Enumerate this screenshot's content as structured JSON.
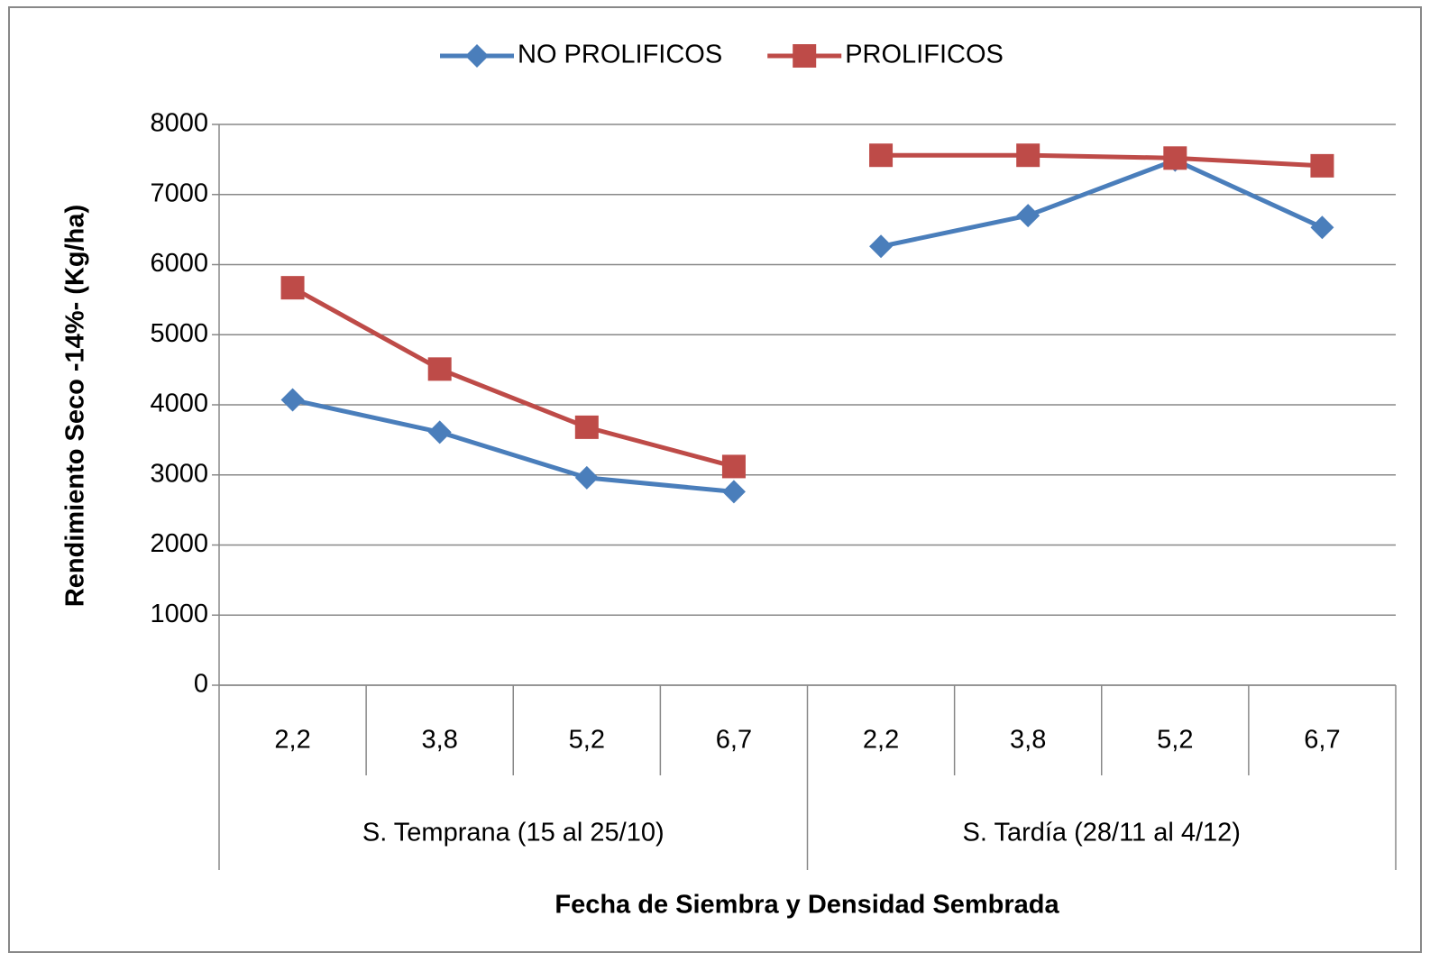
{
  "chart_data": {
    "type": "line",
    "y_label": "Rendimiento Seco -14%- (Kg/ha)",
    "x_label": "Fecha de Siembra y Densidad  Sembrada",
    "groups": [
      {
        "name": "S. Temprana (15 al 25/10)",
        "categories": [
          "2,2",
          "3,8",
          "5,2",
          "6,7"
        ]
      },
      {
        "name": "S. Tardía (28/11 al 4/12)",
        "categories": [
          "2,2",
          "3,8",
          "5,2",
          "6,7"
        ]
      }
    ],
    "series": [
      {
        "name": "NO PROLIFICOS",
        "color": "#4a7ebb",
        "marker": "diamond",
        "values": [
          [
            4070,
            3610,
            2960,
            2760
          ],
          [
            6260,
            6700,
            7490,
            6530
          ]
        ]
      },
      {
        "name": "PROLIFICOS",
        "color": "#be4b48",
        "marker": "square",
        "values": [
          [
            5670,
            4510,
            3680,
            3120
          ],
          [
            7560,
            7560,
            7520,
            7410
          ]
        ]
      }
    ],
    "ylim": [
      0,
      8000
    ],
    "yticks": [
      0,
      1000,
      2000,
      3000,
      4000,
      5000,
      6000,
      7000,
      8000
    ],
    "grid": true
  }
}
